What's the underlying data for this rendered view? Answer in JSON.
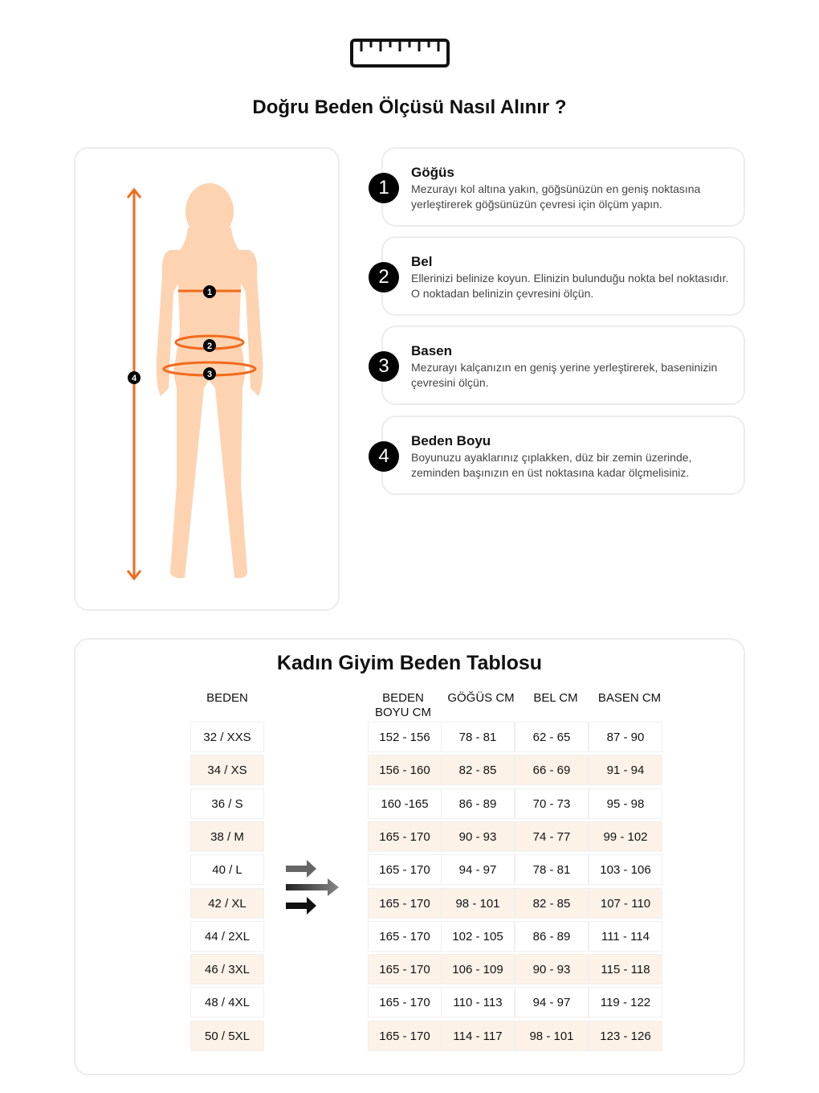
{
  "header": {
    "icon": "ruler-icon",
    "title": "Doğru Beden Ölçüsü Nasıl Alınır ?"
  },
  "figure": {
    "markers": [
      "1",
      "2",
      "3",
      "4"
    ],
    "colors": {
      "skin": "#fdd3b1",
      "accent": "#f26a1b"
    }
  },
  "steps": [
    {
      "num": "1",
      "title": "Göğüs",
      "desc": "Mezurayı kol altına yakın, göğsünüzün en geniş noktasına yerleştirerek göğsünüzün çevresi için ölçüm yapın."
    },
    {
      "num": "2",
      "title": "Bel",
      "desc": "Ellerinizi belinize koyun. Elinizin bulunduğu nokta bel noktasıdır. O noktadan belinizin çevresini ölçün."
    },
    {
      "num": "3",
      "title": "Basen",
      "desc": "Mezurayı kalçanızın en geniş yerine yerleştirerek, baseninizin çevresini ölçün."
    },
    {
      "num": "4",
      "title": "Beden Boyu",
      "desc": "Boyunuzu ayaklarınız çıplakken, düz bir zemin üzerinde, zeminden başınızın en üst noktasına kadar ölçmelisiniz."
    }
  ],
  "table": {
    "title": "Kadın Giyim Beden Tablosu",
    "headers": [
      "BEDEN",
      "BEDEN BOYU CM",
      "GÖĞÜS CM",
      "BEL CM",
      "BASEN CM"
    ],
    "rows": [
      [
        "32 / XXS",
        "152 - 156",
        "78 - 81",
        "62 - 65",
        "87 - 90"
      ],
      [
        "34 / XS",
        "156 - 160",
        "82 - 85",
        "66 - 69",
        "91 - 94"
      ],
      [
        "36 / S",
        "160 -165",
        "86 - 89",
        "70 - 73",
        "95 - 98"
      ],
      [
        "38 / M",
        "165 - 170",
        "90 - 93",
        "74 - 77",
        "99 - 102"
      ],
      [
        "40 / L",
        "165 - 170",
        "94 - 97",
        "78 - 81",
        "103 - 106"
      ],
      [
        "42 / XL",
        "165 - 170",
        "98 - 101",
        "82 - 85",
        "107 - 110"
      ],
      [
        "44 / 2XL",
        "165 - 170",
        "102 - 105",
        "86 - 89",
        "111 - 114"
      ],
      [
        "46 / 3XL",
        "165 - 170",
        "106 - 109",
        "90 - 93",
        "115 - 118"
      ],
      [
        "48 / 4XL",
        "165 - 170",
        "110 - 113",
        "94 - 97",
        "119 - 122"
      ],
      [
        "50 / 5XL",
        "165 - 170",
        "114 - 117",
        "98 - 101",
        "123 - 126"
      ]
    ],
    "row_highlight": "#fdf2e7"
  }
}
